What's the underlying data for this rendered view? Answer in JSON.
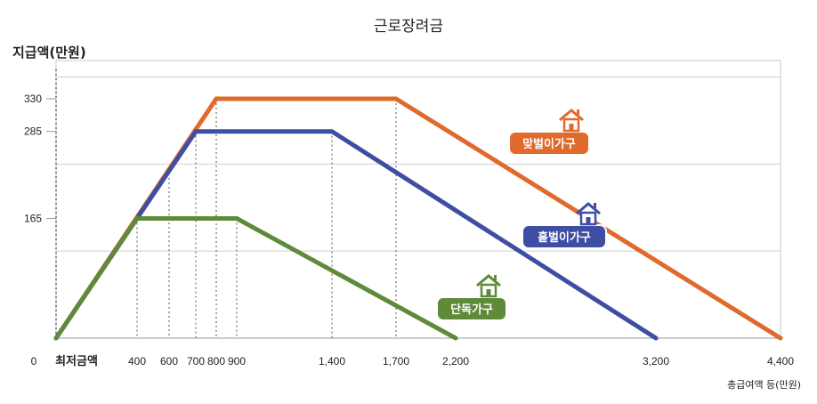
{
  "chart_data": {
    "type": "line",
    "title": "근로장려금",
    "ylabel": "지급액(만원)",
    "xlabel": "총급여액 등(만원)",
    "x_min_label": "최저금액",
    "x_zero_label": "0",
    "xlim": [
      0,
      4400
    ],
    "ylim": [
      0,
      360
    ],
    "x_ticks": [
      0,
      400,
      600,
      700,
      800,
      900,
      1400,
      1700,
      2200,
      3200,
      4400
    ],
    "x_tick_labels": [
      "",
      "400",
      "600",
      "700",
      "800",
      "900",
      "1,400",
      "1,700",
      "2,200",
      "3,200",
      "4,400"
    ],
    "y_ticks": [
      165,
      285,
      330
    ],
    "y_tick_labels": [
      "165",
      "285",
      "330"
    ],
    "gridlines_y": [
      120,
      240,
      360
    ],
    "grid": true,
    "series": [
      {
        "name": "맞벌이가구",
        "color": "#e06a2c",
        "x": [
          0,
          800,
          1700,
          4400
        ],
        "y": [
          0,
          330,
          330,
          0
        ]
      },
      {
        "name": "홑벌이가구",
        "color": "#3d4ea3",
        "x": [
          0,
          700,
          1400,
          3200
        ],
        "y": [
          0,
          285,
          285,
          0
        ]
      },
      {
        "name": "단독가구",
        "color": "#5e8a3a",
        "x": [
          0,
          400,
          900,
          2200
        ],
        "y": [
          0,
          165,
          165,
          0
        ]
      }
    ]
  }
}
